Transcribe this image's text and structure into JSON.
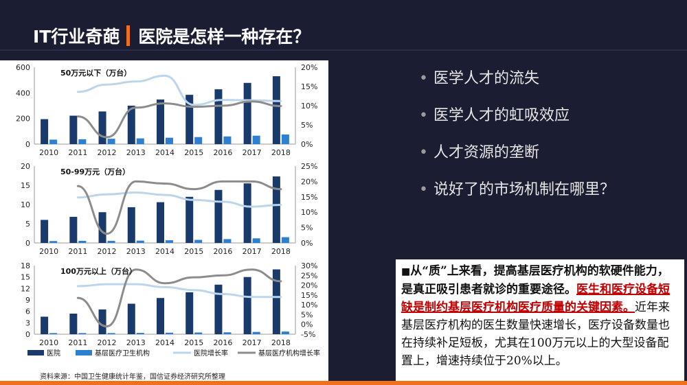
{
  "slide": {
    "title_part1": "IT行业奇葩",
    "title_part2": "医院是怎样一种存在？",
    "bullets": [
      "医学人才的流失",
      "医学人才的虹吸效应",
      "人才资源的垄断",
      "说好了的市场机制在哪里？"
    ],
    "note": {
      "marker": "■",
      "bold_text": "从“质”上来看，提高基层医疗机构的软硬件能力，是真正吸引患者就诊的重要途径。",
      "red_text": "医生和医疗设备短缺是制约基层医疗机构医疗质量的关键因素。",
      "normal_text": "近年来基层医疗机构的医生数量快速增长，医疗设备数量也在持续补足短板，尤其在100万元以上的大型设备配置上，增速持续位于20%以上。"
    },
    "source": "资料来源：中国卫生健康统计年鉴，国信证券经济研究所整理",
    "colors": {
      "background": "#1b1d33",
      "accent": "#f0701e",
      "hospital_bar": "#1a3a6c",
      "grassroots_bar": "#2f7fd0",
      "hospital_growth": "#bcd5ea",
      "grassroots_growth": "#8c8c8c",
      "highlight": "#c00000"
    }
  },
  "chart_data": [
    {
      "type": "bar",
      "title": "50万元以下（万台）",
      "categories": [
        "2010",
        "2011",
        "2012",
        "2013",
        "2014",
        "2015",
        "2016",
        "2017",
        "2018"
      ],
      "series": [
        {
          "name": "医院",
          "kind": "bar",
          "axis": "left",
          "values": [
            195,
            222,
            255,
            300,
            348,
            385,
            428,
            478,
            530
          ]
        },
        {
          "name": "基层医疗卫生机构",
          "kind": "bar",
          "axis": "left",
          "values": [
            35,
            38,
            42,
            45,
            50,
            55,
            60,
            66,
            75
          ]
        },
        {
          "name": "医院增长率",
          "kind": "line",
          "axis": "right",
          "values": [
            null,
            13.6,
            15.5,
            16.3,
            17.8,
            10.2,
            11.5,
            11.4,
            11.2
          ]
        },
        {
          "name": "基层医疗机构增长率",
          "kind": "line",
          "axis": "right",
          "values": [
            null,
            7.2,
            1.8,
            9.5,
            10.6,
            9.7,
            10.0,
            11.1,
            9.9
          ]
        }
      ],
      "ylim": [
        0,
        600
      ],
      "yticks": [
        0,
        200,
        400,
        600
      ],
      "y2lim": [
        0,
        20
      ],
      "y2ticks": [
        "0%",
        "5%",
        "10%",
        "15%",
        "20%"
      ]
    },
    {
      "type": "bar",
      "title": "50-99万元（万台）",
      "categories": [
        "2010",
        "2011",
        "2012",
        "2013",
        "2014",
        "2015",
        "2016",
        "2017",
        "2018"
      ],
      "series": [
        {
          "name": "医院",
          "kind": "bar",
          "axis": "left",
          "values": [
            6.0,
            6.8,
            8.0,
            9.3,
            10.6,
            12.0,
            13.8,
            15.5,
            17.3
          ]
        },
        {
          "name": "基层医疗卫生机构",
          "kind": "bar",
          "axis": "left",
          "values": [
            0.5,
            0.55,
            0.55,
            0.6,
            0.7,
            0.8,
            1.0,
            1.2,
            1.5
          ]
        },
        {
          "name": "医院增长率",
          "kind": "line",
          "axis": "right",
          "values": [
            null,
            14.8,
            15.8,
            16.4,
            15.6,
            14.0,
            13.4,
            11.8,
            12.4
          ]
        },
        {
          "name": "基层医疗机构增长率",
          "kind": "line",
          "axis": "right",
          "values": [
            null,
            18.5,
            3.0,
            20.0,
            19.3,
            17.5,
            20.0,
            20.0,
            17.5
          ]
        }
      ],
      "ylim": [
        0,
        20
      ],
      "yticks": [
        0,
        5,
        10,
        15,
        20
      ],
      "y2lim": [
        0,
        25
      ],
      "y2ticks": [
        "0%",
        "5%",
        "10%",
        "15%",
        "20%",
        "25%"
      ]
    },
    {
      "type": "bar",
      "title": "100万元以上（万台）",
      "categories": [
        "2010",
        "2011",
        "2012",
        "2013",
        "2014",
        "2015",
        "2016",
        "2017",
        "2018"
      ],
      "series": [
        {
          "name": "医院",
          "kind": "bar",
          "axis": "left",
          "values": [
            4.6,
            5.4,
            6.5,
            8.0,
            9.5,
            11.0,
            13.0,
            15.0,
            17.0
          ]
        },
        {
          "name": "基层医疗卫生机构",
          "kind": "bar",
          "axis": "left",
          "values": [
            0.3,
            0.3,
            0.3,
            0.35,
            0.4,
            0.45,
            0.5,
            0.6,
            0.7
          ]
        },
        {
          "name": "医院增长率",
          "kind": "line",
          "axis": "right",
          "values": [
            null,
            19.5,
            20.5,
            20.5,
            19.0,
            17.5,
            15.5,
            14.0,
            14.0
          ]
        },
        {
          "name": "基层医疗机构增长率",
          "kind": "line",
          "axis": "right",
          "values": [
            null,
            13.5,
            -1.0,
            28.0,
            21.0,
            24.0,
            25.0,
            28.0,
            22.0
          ]
        }
      ],
      "ylim": [
        0,
        18
      ],
      "yticks": [
        0,
        3,
        6,
        9,
        12,
        15,
        18
      ],
      "y2lim": [
        -5,
        30
      ],
      "y2ticks": [
        "-5%",
        "0%",
        "5%",
        "10%",
        "15%",
        "20%",
        "25%",
        "30%"
      ]
    }
  ]
}
